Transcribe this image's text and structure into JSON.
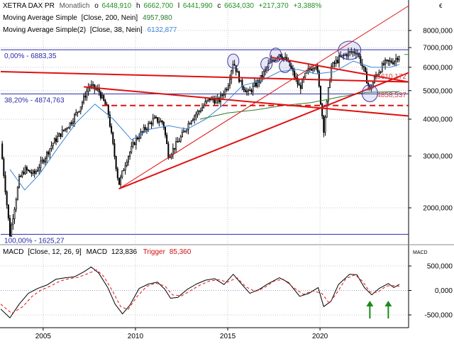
{
  "header": {
    "instrument": "XETRA DAX PR",
    "period": "Monatlich",
    "ohlc": {
      "open_label": "o",
      "open": "6448,910",
      "high_label": "h",
      "high": "6662,700",
      "low_label": "l",
      "low": "6441,990",
      "close_label": "c",
      "close": "6634,030",
      "change": "+217,370",
      "change_pct": "+3,388%"
    },
    "ma1_label": "Moving Average Simple",
    "ma1_params": "[Close, 200, Nein]",
    "ma1_value": "4957,980",
    "ma2_label": "Moving Average Simple(2)",
    "ma2_params": "[Close, 38, Nein]",
    "ma2_value": "6132,877",
    "currency": "€"
  },
  "macd_header": {
    "label": "MACD",
    "params": "[Close, 12, 26, 9]",
    "name": "MACD",
    "value": "123,836",
    "trigger_label": "Trigger",
    "trigger_value": "85,360",
    "axis_title": "MACD"
  },
  "colors": {
    "up": "#22a022",
    "down": "#d01010",
    "positive_text": "#1f8f1f",
    "negative_text": "#d01010",
    "ma200": "#2a7a2a",
    "ma38": "#3a86d8",
    "trendline": "#e01010",
    "fib": "#2a2aa8",
    "macd_line": "#000000",
    "trigger_line": "#e01010",
    "arrow": "#1a8a1a",
    "grid": "#c8c8c8"
  },
  "chart_data": [
    {
      "type": "candlestick",
      "title": "XETRA DAX PR",
      "scale": "log",
      "ylim": [
        1500,
        10000
      ],
      "y_ticks": [
        {
          "label": "2000,000",
          "value": 2000
        },
        {
          "label": "3000,000",
          "value": 3000
        },
        {
          "label": "4000,000",
          "value": 4000
        },
        {
          "label": "5000,000",
          "value": 5000
        },
        {
          "label": "6000,000",
          "value": 6000
        },
        {
          "label": "7000,000",
          "value": 7000
        },
        {
          "label": "8000,000",
          "value": 8000
        }
      ],
      "x_range": [
        2002.7,
        2024.8
      ],
      "x_ticks": [
        {
          "label": "2005",
          "value": 2005
        },
        {
          "label": "2010",
          "value": 2010
        },
        {
          "label": "2015",
          "value": 2015
        },
        {
          "label": "2020",
          "value": 2020
        }
      ],
      "price_path": [
        [
          2002.7,
          3300
        ],
        [
          2003.2,
          1625
        ],
        [
          2003.7,
          2500
        ],
        [
          2004.0,
          2700
        ],
        [
          2004.5,
          2600
        ],
        [
          2005.0,
          2900
        ],
        [
          2005.5,
          3300
        ],
        [
          2006.0,
          3600
        ],
        [
          2006.5,
          3900
        ],
        [
          2007.0,
          4400
        ],
        [
          2007.5,
          5200
        ],
        [
          2008.0,
          5000
        ],
        [
          2008.5,
          4300
        ],
        [
          2008.8,
          3200
        ],
        [
          2009.1,
          2400
        ],
        [
          2009.5,
          2900
        ],
        [
          2010.0,
          3400
        ],
        [
          2010.5,
          3700
        ],
        [
          2011.0,
          4000
        ],
        [
          2011.5,
          3900
        ],
        [
          2011.8,
          3000
        ],
        [
          2012.5,
          3500
        ],
        [
          2013.0,
          4000
        ],
        [
          2013.5,
          4300
        ],
        [
          2014.0,
          4700
        ],
        [
          2014.5,
          4600
        ],
        [
          2015.0,
          5200
        ],
        [
          2015.3,
          6300
        ],
        [
          2015.7,
          5300
        ],
        [
          2016.1,
          4900
        ],
        [
          2016.7,
          5400
        ],
        [
          2017.2,
          6100
        ],
        [
          2017.8,
          6700
        ],
        [
          2018.3,
          6200
        ],
        [
          2018.9,
          5100
        ],
        [
          2019.3,
          5800
        ],
        [
          2019.8,
          6200
        ],
        [
          2020.2,
          3700
        ],
        [
          2020.6,
          6000
        ],
        [
          2021.0,
          6400
        ],
        [
          2021.5,
          6700
        ],
        [
          2022.0,
          6800
        ],
        [
          2022.4,
          5800
        ],
        [
          2022.7,
          5000
        ],
        [
          2023.0,
          5600
        ],
        [
          2023.5,
          6200
        ],
        [
          2024.0,
          6300
        ],
        [
          2024.3,
          6634
        ]
      ],
      "ma200_path": [
        [
          2013.5,
          4000
        ],
        [
          2015.0,
          4200
        ],
        [
          2016.5,
          4300
        ],
        [
          2018.0,
          4450
        ],
        [
          2019.5,
          4550
        ],
        [
          2021.0,
          4750
        ],
        [
          2022.5,
          4930
        ],
        [
          2024.3,
          4958
        ]
      ],
      "ma38_path": [
        [
          2003.2,
          2700
        ],
        [
          2004.0,
          2300
        ],
        [
          2004.8,
          2600
        ],
        [
          2005.8,
          3200
        ],
        [
          2006.8,
          3900
        ],
        [
          2007.8,
          4500
        ],
        [
          2008.8,
          4000
        ],
        [
          2009.8,
          3400
        ],
        [
          2010.8,
          3700
        ],
        [
          2011.8,
          3800
        ],
        [
          2012.8,
          3700
        ],
        [
          2013.8,
          4000
        ],
        [
          2014.8,
          4500
        ],
        [
          2015.8,
          5200
        ],
        [
          2016.8,
          5400
        ],
        [
          2017.8,
          5800
        ],
        [
          2018.8,
          5900
        ],
        [
          2019.8,
          5700
        ],
        [
          2020.8,
          5800
        ],
        [
          2021.8,
          6300
        ],
        [
          2022.8,
          6000
        ],
        [
          2023.8,
          6000
        ],
        [
          2024.3,
          6133
        ]
      ],
      "fib_levels": [
        {
          "label": "0,00% - 6883,35",
          "value": 6883.35
        },
        {
          "label": "38,20% - 4874,763",
          "value": 4874.763
        },
        {
          "label": "100,00% - 1625,27",
          "value": 1625.27
        }
      ],
      "horizontal_marks": [
        {
          "label": "5610,172",
          "value": 5610.172,
          "style": "solid"
        },
        {
          "label": "4858,537",
          "value": 4858.537,
          "style": "solid"
        },
        {
          "label": "",
          "value": 4450,
          "style": "dashed",
          "from": 2008.2
        }
      ],
      "trendlines": [
        {
          "from": [
            2002.7,
            5800
          ],
          "to": [
            2024.8,
            5350
          ],
          "width": 2
        },
        {
          "from": [
            2009.1,
            2320
          ],
          "to": [
            2024.8,
            5750
          ],
          "width": 2
        },
        {
          "from": [
            2007.2,
            5150
          ],
          "to": [
            2024.8,
            4100
          ],
          "width": 2
        },
        {
          "from": [
            2017.3,
            6500
          ],
          "to": [
            2024.8,
            5350
          ],
          "width": 2
        },
        {
          "from": [
            2009.1,
            2320
          ],
          "to": [
            2024.8,
            9700
          ],
          "width": 1
        }
      ],
      "circles": [
        {
          "x": 2015.3,
          "y": 6300,
          "rx": 8,
          "ry": 10
        },
        {
          "x": 2017.1,
          "y": 6150,
          "rx": 8,
          "ry": 9
        },
        {
          "x": 2017.6,
          "y": 6600,
          "rx": 8,
          "ry": 10
        },
        {
          "x": 2018.1,
          "y": 6050,
          "rx": 8,
          "ry": 9
        },
        {
          "x": 2021.6,
          "y": 6850,
          "rx": 16,
          "ry": 13
        },
        {
          "x": 2022.7,
          "y": 4900,
          "rx": 11,
          "ry": 12
        }
      ]
    },
    {
      "type": "line",
      "title": "MACD",
      "ylim": [
        -650,
        700
      ],
      "y_ticks": [
        {
          "label": "500,000",
          "value": 500
        },
        {
          "label": "0,000",
          "value": 0
        },
        {
          "label": "-500,000",
          "value": -500
        }
      ],
      "series": [
        {
          "name": "MACD",
          "points": [
            [
              2002.7,
              -380
            ],
            [
              2003.2,
              -560
            ],
            [
              2003.7,
              -280
            ],
            [
              2004.2,
              -60
            ],
            [
              2004.7,
              40
            ],
            [
              2005.2,
              110
            ],
            [
              2005.7,
              230
            ],
            [
              2006.2,
              260
            ],
            [
              2006.7,
              280
            ],
            [
              2007.2,
              380
            ],
            [
              2007.6,
              480
            ],
            [
              2008.0,
              360
            ],
            [
              2008.5,
              60
            ],
            [
              2008.9,
              -280
            ],
            [
              2009.3,
              -480
            ],
            [
              2009.7,
              -300
            ],
            [
              2010.2,
              40
            ],
            [
              2010.7,
              130
            ],
            [
              2011.2,
              170
            ],
            [
              2011.6,
              20
            ],
            [
              2011.9,
              -160
            ],
            [
              2012.3,
              -140
            ],
            [
              2012.8,
              20
            ],
            [
              2013.3,
              130
            ],
            [
              2013.8,
              210
            ],
            [
              2014.3,
              240
            ],
            [
              2014.8,
              120
            ],
            [
              2015.3,
              330
            ],
            [
              2015.8,
              110
            ],
            [
              2016.2,
              -60
            ],
            [
              2016.7,
              20
            ],
            [
              2017.2,
              140
            ],
            [
              2017.8,
              260
            ],
            [
              2018.3,
              160
            ],
            [
              2018.9,
              -120
            ],
            [
              2019.4,
              -60
            ],
            [
              2019.9,
              60
            ],
            [
              2020.2,
              -330
            ],
            [
              2020.6,
              -220
            ],
            [
              2021.0,
              120
            ],
            [
              2021.6,
              330
            ],
            [
              2022.0,
              320
            ],
            [
              2022.4,
              60
            ],
            [
              2022.8,
              -90
            ],
            [
              2023.2,
              40
            ],
            [
              2023.7,
              140
            ],
            [
              2024.0,
              60
            ],
            [
              2024.3,
              124
            ]
          ]
        },
        {
          "name": "Trigger",
          "points": [
            [
              2002.7,
              -280
            ],
            [
              2003.3,
              -470
            ],
            [
              2003.9,
              -330
            ],
            [
              2004.4,
              -120
            ],
            [
              2004.9,
              10
            ],
            [
              2005.4,
              90
            ],
            [
              2005.9,
              190
            ],
            [
              2006.4,
              240
            ],
            [
              2006.9,
              270
            ],
            [
              2007.4,
              340
            ],
            [
              2007.9,
              420
            ],
            [
              2008.3,
              280
            ],
            [
              2008.8,
              -40
            ],
            [
              2009.2,
              -330
            ],
            [
              2009.6,
              -390
            ],
            [
              2010.1,
              -120
            ],
            [
              2010.6,
              80
            ],
            [
              2011.1,
              150
            ],
            [
              2011.6,
              90
            ],
            [
              2012.0,
              -90
            ],
            [
              2012.5,
              -110
            ],
            [
              2013.0,
              0
            ],
            [
              2013.5,
              110
            ],
            [
              2014.0,
              190
            ],
            [
              2014.5,
              220
            ],
            [
              2015.0,
              170
            ],
            [
              2015.5,
              260
            ],
            [
              2016.0,
              70
            ],
            [
              2016.5,
              -20
            ],
            [
              2017.0,
              60
            ],
            [
              2017.5,
              190
            ],
            [
              2018.0,
              230
            ],
            [
              2018.6,
              50
            ],
            [
              2019.1,
              -80
            ],
            [
              2019.6,
              -10
            ],
            [
              2020.1,
              -60
            ],
            [
              2020.5,
              -260
            ],
            [
              2020.9,
              -60
            ],
            [
              2021.4,
              240
            ],
            [
              2021.9,
              320
            ],
            [
              2022.3,
              190
            ],
            [
              2022.7,
              -30
            ],
            [
              2023.1,
              -40
            ],
            [
              2023.6,
              90
            ],
            [
              2024.0,
              100
            ],
            [
              2024.3,
              85
            ]
          ]
        }
      ],
      "arrows": [
        {
          "x": 2022.7
        },
        {
          "x": 2023.7
        }
      ]
    }
  ]
}
